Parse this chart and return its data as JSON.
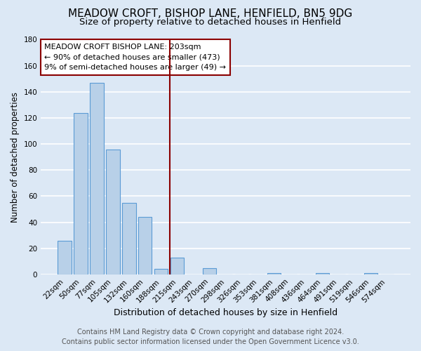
{
  "title": "MEADOW CROFT, BISHOP LANE, HENFIELD, BN5 9DG",
  "subtitle": "Size of property relative to detached houses in Henfield",
  "xlabel": "Distribution of detached houses by size in Henfield",
  "ylabel": "Number of detached properties",
  "footer_line1": "Contains HM Land Registry data © Crown copyright and database right 2024.",
  "footer_line2": "Contains public sector information licensed under the Open Government Licence v3.0.",
  "bin_labels": [
    "22sqm",
    "50sqm",
    "77sqm",
    "105sqm",
    "132sqm",
    "160sqm",
    "188sqm",
    "215sqm",
    "243sqm",
    "270sqm",
    "298sqm",
    "326sqm",
    "353sqm",
    "381sqm",
    "408sqm",
    "436sqm",
    "464sqm",
    "491sqm",
    "519sqm",
    "546sqm",
    "574sqm"
  ],
  "bin_values": [
    26,
    124,
    147,
    96,
    55,
    44,
    4,
    13,
    0,
    5,
    0,
    0,
    0,
    1,
    0,
    0,
    1,
    0,
    0,
    1,
    0
  ],
  "bar_color": "#b8d0e8",
  "bar_edge_color": "#5b9bd5",
  "background_color": "#dce8f5",
  "grid_color": "#ffffff",
  "property_line_color": "#8b0000",
  "property_line_label": "MEADOW CROFT BISHOP LANE: 203sqm",
  "annotation_line2": "← 90% of detached houses are smaller (473)",
  "annotation_line3": "9% of semi-detached houses are larger (49) →",
  "annotation_box_edge_color": "#8b0000",
  "annotation_box_face_color": "#ffffff",
  "ylim": [
    0,
    180
  ],
  "yticks": [
    0,
    20,
    40,
    60,
    80,
    100,
    120,
    140,
    160,
    180
  ],
  "title_fontsize": 11,
  "subtitle_fontsize": 9.5,
  "xlabel_fontsize": 9,
  "ylabel_fontsize": 8.5,
  "tick_fontsize": 7.5,
  "annotation_fontsize": 8,
  "footer_fontsize": 7
}
